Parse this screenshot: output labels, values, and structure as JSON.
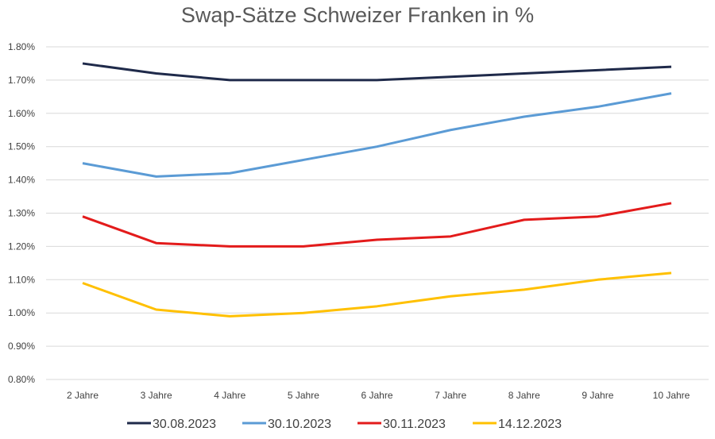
{
  "chart_data": {
    "type": "line",
    "title": "Swap-Sätze Schweizer Franken in %",
    "categories": [
      "2 Jahre",
      "3 Jahre",
      "4 Jahre",
      "5 Jahre",
      "6 Jahre",
      "7 Jahre",
      "8 Jahre",
      "9 Jahre",
      "10 Jahre"
    ],
    "ylim": [
      0.8,
      1.8
    ],
    "yticks": [
      "0.80%",
      "0.90%",
      "1.00%",
      "1.10%",
      "1.20%",
      "1.30%",
      "1.40%",
      "1.50%",
      "1.60%",
      "1.70%",
      "1.80%"
    ],
    "grid": true,
    "legend": "bottom",
    "series": [
      {
        "name": "30.08.2023",
        "color": "#1f2a4a",
        "values": [
          1.75,
          1.72,
          1.7,
          1.7,
          1.7,
          1.71,
          1.72,
          1.73,
          1.74
        ]
      },
      {
        "name": "30.10.2023",
        "color": "#5b9bd5",
        "values": [
          1.45,
          1.41,
          1.42,
          1.46,
          1.5,
          1.55,
          1.59,
          1.62,
          1.66
        ]
      },
      {
        "name": "30.11.2023",
        "color": "#e31b1b",
        "values": [
          1.29,
          1.21,
          1.2,
          1.2,
          1.22,
          1.23,
          1.28,
          1.29,
          1.33
        ]
      },
      {
        "name": "14.12.2023",
        "color": "#ffc000",
        "values": [
          1.09,
          1.01,
          0.99,
          1.0,
          1.02,
          1.05,
          1.07,
          1.1,
          1.12
        ]
      }
    ]
  }
}
